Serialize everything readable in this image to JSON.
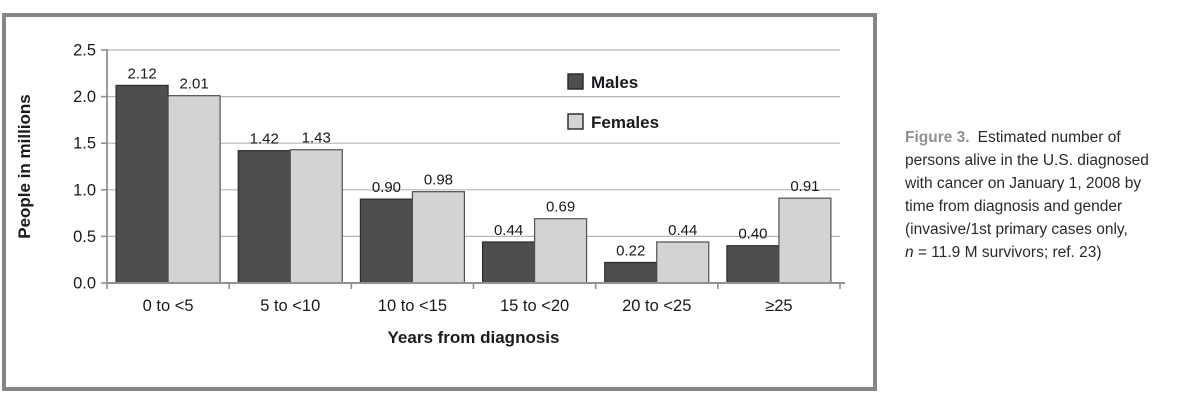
{
  "chart_data": {
    "type": "bar",
    "title": "",
    "categories": [
      "0 to <5",
      "5 to <10",
      "10 to <15",
      "15 to <20",
      "20 to <25",
      "≥25"
    ],
    "series": [
      {
        "name": "Males",
        "values": [
          2.12,
          1.42,
          0.9,
          0.44,
          0.22,
          0.4
        ],
        "color": "#4c4e50",
        "border": "#2b2b2d"
      },
      {
        "name": "Females",
        "values": [
          2.01,
          1.43,
          0.98,
          0.69,
          0.44,
          0.91
        ],
        "color": "#d2d3d5",
        "border": "#4f5153"
      }
    ],
    "xlabel": "Years from diagnosis",
    "ylabel": "People in millions",
    "ylim": [
      0,
      2.5
    ],
    "ytick_step": 0.5,
    "grid": true,
    "legend_position": "inside-top-right",
    "value_labels": true,
    "value_label_format": "0.00",
    "ytick_format": "0.0"
  },
  "caption": {
    "label": "Figure 3.",
    "line1_rest": "Estimated number of",
    "lines": [
      "persons alive in the U.S. diagnosed",
      "with cancer on January 1, 2008 by",
      "time from diagnosis and gender",
      "(invasive/1st primary cases only,"
    ],
    "n_var": "n",
    "last_line_rest": " = 11.9 M survivors; ref. 23)"
  },
  "colors": {
    "frame_border": "#84878a",
    "gridline": "#b6b6b8",
    "axis": "#8f9193",
    "text": "#1a1a1e",
    "caption_label": "#8e9194",
    "caption_body": "#2a2a2a"
  }
}
